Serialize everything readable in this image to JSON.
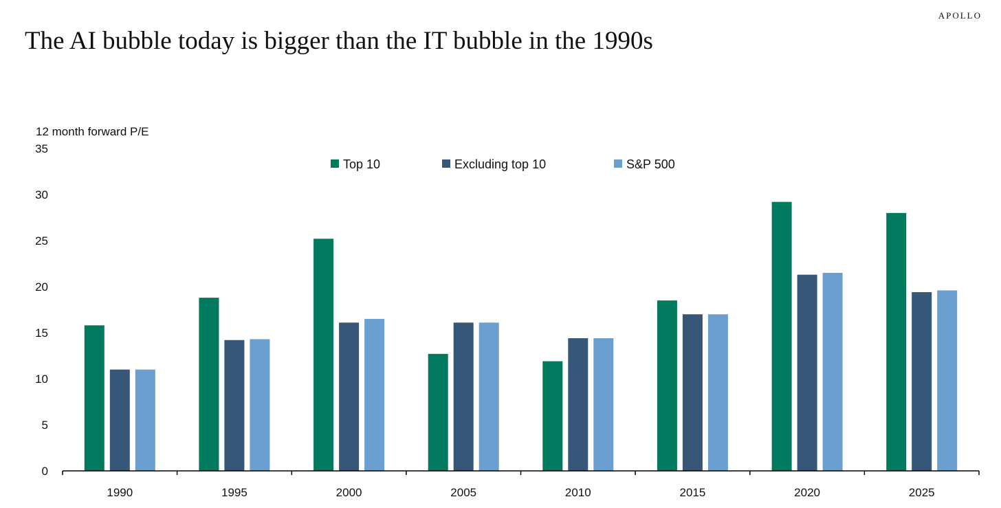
{
  "brand": "APOLLO",
  "title": "The AI bubble today is bigger than the IT bubble in the 1990s",
  "chart_data": {
    "type": "bar",
    "title": "The AI bubble today is bigger than the IT bubble in the 1990s",
    "xlabel": "",
    "ylabel": "12 month forward P/E",
    "ylim": [
      0,
      35
    ],
    "yticks": [
      0,
      5,
      10,
      15,
      20,
      25,
      30,
      35
    ],
    "grid": false,
    "legend_position": "top-center",
    "categories": [
      "1990",
      "1995",
      "2000",
      "2005",
      "2010",
      "2015",
      "2020",
      "2025"
    ],
    "series": [
      {
        "name": "Top 10",
        "color": "#007a5e",
        "values": [
          15.8,
          18.8,
          25.2,
          12.7,
          11.9,
          18.5,
          29.2,
          28.0
        ]
      },
      {
        "name": "Excluding top 10",
        "color": "#365777",
        "values": [
          11.0,
          14.2,
          16.1,
          16.1,
          14.4,
          17.0,
          21.3,
          19.4
        ]
      },
      {
        "name": "S&P 500",
        "color": "#6a9fcf",
        "values": [
          11.0,
          14.3,
          16.5,
          16.1,
          14.4,
          17.0,
          21.5,
          19.6
        ]
      }
    ]
  }
}
